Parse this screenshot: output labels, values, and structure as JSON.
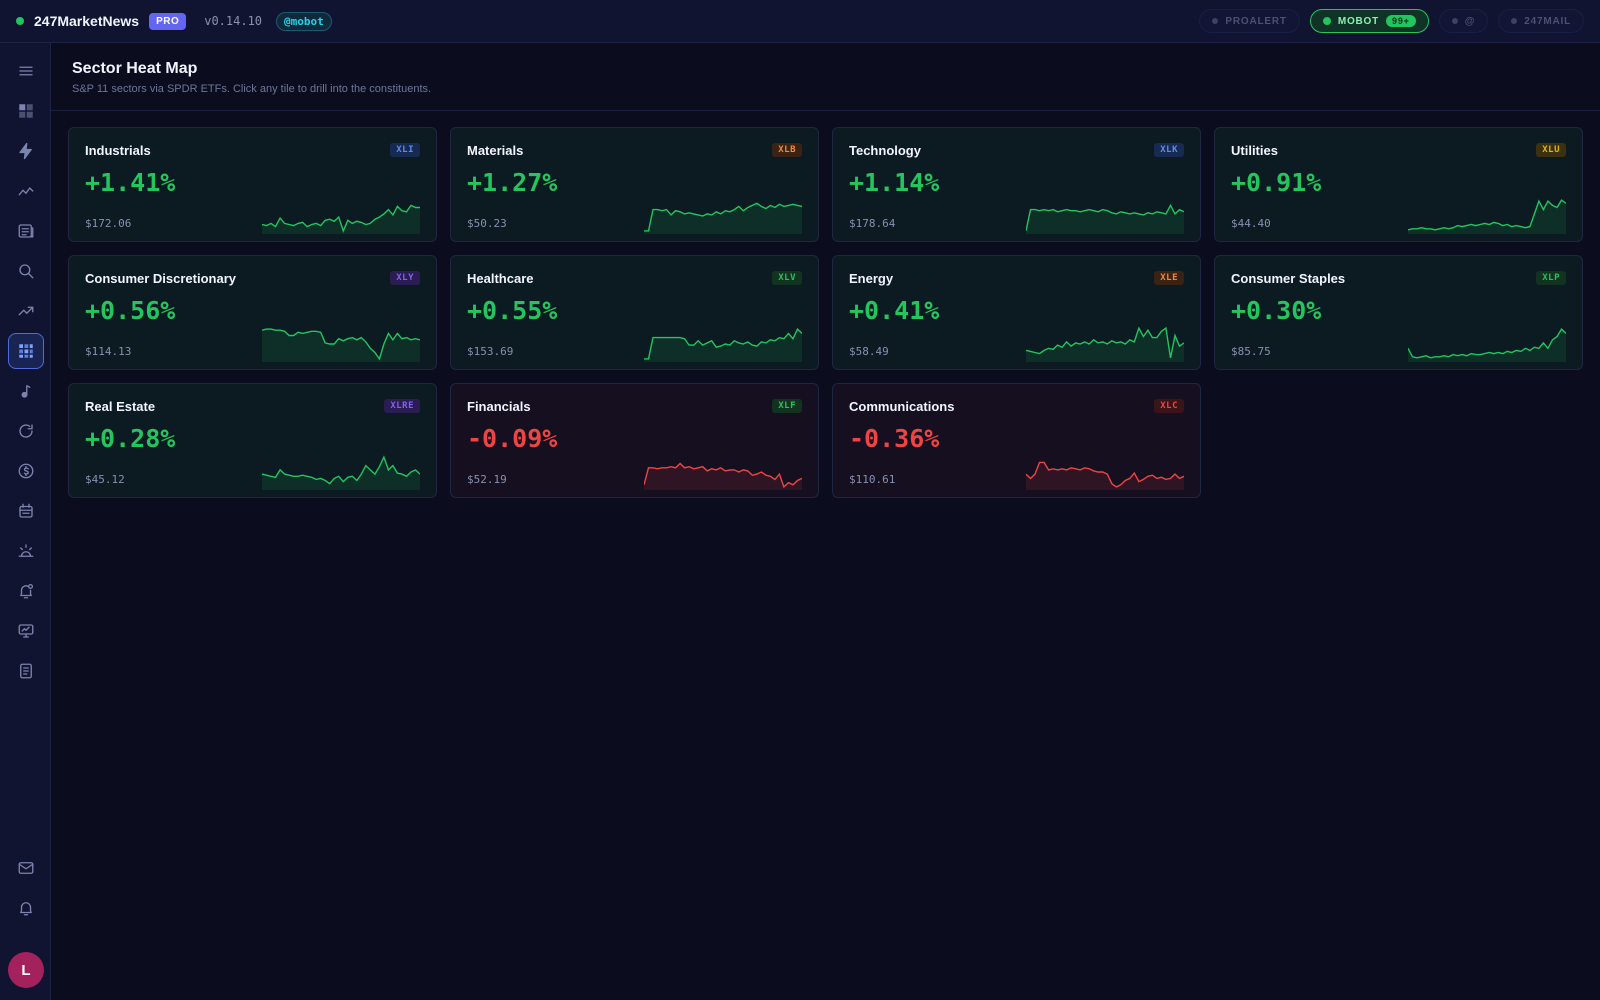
{
  "header": {
    "brand": "247MarketNews",
    "pro": "PRO",
    "version": "v0.14.10",
    "user": "@mobot",
    "pills": [
      {
        "label": "PROALERT",
        "active": false
      },
      {
        "label": "MOBOT",
        "active": true,
        "count": "99+"
      },
      {
        "label": "@",
        "active": false
      },
      {
        "label": "247MAIL",
        "active": false
      }
    ]
  },
  "page": {
    "title": "Sector Heat Map",
    "subtitle": "S&P 11 sectors via SPDR ETFs. Click any tile to drill into the constituents."
  },
  "sidebar": {
    "items": [
      "menu-icon",
      "dashboard-icon",
      "bolt-icon",
      "line-chart-icon",
      "news-icon",
      "search-icon",
      "trending-icon",
      "heatmap-icon",
      "music-note-icon",
      "refresh-icon",
      "dollar-icon",
      "calendar-icon",
      "sunrise-icon",
      "bell-plus-icon",
      "monitor-chart-icon",
      "document-icon"
    ],
    "bottom": [
      "mail-icon",
      "bell-icon"
    ],
    "avatar": "L"
  },
  "colors": {
    "up": "#22c55e",
    "down": "#ef4444"
  },
  "sectors": [
    {
      "name": "Industrials",
      "ticker": "XLI",
      "change": "+1.41%",
      "price": "$172.06",
      "tickerColor": "#5b8def",
      "tickerBg": "#172a52",
      "dir": "up",
      "spark": [
        8,
        7,
        9,
        6,
        14,
        9,
        8,
        7,
        9,
        10,
        6,
        8,
        9,
        7,
        12,
        13,
        11,
        15,
        2,
        12,
        9,
        11,
        10,
        8,
        9,
        13,
        15,
        18,
        22,
        17,
        25,
        21,
        20,
        26,
        24,
        24
      ]
    },
    {
      "name": "Materials",
      "ticker": "XLB",
      "change": "+1.27%",
      "price": "$50.23",
      "tickerColor": "#f0883e",
      "tickerBg": "#3a2312",
      "dir": "up",
      "spark": [
        2,
        2,
        22,
        22,
        21,
        22,
        17,
        21,
        20,
        18,
        19,
        18,
        17,
        16,
        18,
        17,
        20,
        18,
        21,
        20,
        22,
        25,
        21,
        24,
        26,
        28,
        25,
        23,
        26,
        24,
        27,
        25,
        26,
        27,
        26,
        25
      ]
    },
    {
      "name": "Technology",
      "ticker": "XLK",
      "change": "+1.14%",
      "price": "$178.64",
      "tickerColor": "#5b8def",
      "tickerBg": "#172a52",
      "dir": "up",
      "spark": [
        2,
        22,
        22,
        21,
        22,
        21,
        22,
        20,
        21,
        22,
        21,
        21,
        20,
        21,
        22,
        21,
        20,
        22,
        21,
        19,
        18,
        20,
        19,
        18,
        19,
        18,
        17,
        19,
        18,
        20,
        19,
        18,
        26,
        18,
        22,
        20
      ]
    },
    {
      "name": "Utilities",
      "ticker": "XLU",
      "change": "+0.91%",
      "price": "$44.40",
      "tickerColor": "#eab308",
      "tickerBg": "#3a3110",
      "dir": "up",
      "spark": [
        3,
        4,
        4,
        5,
        4,
        4,
        3,
        4,
        5,
        4,
        5,
        7,
        6,
        7,
        8,
        7,
        8,
        9,
        8,
        10,
        9,
        7,
        8,
        6,
        7,
        6,
        5,
        6,
        18,
        30,
        22,
        30,
        26,
        24,
        31,
        28
      ]
    },
    {
      "name": "Consumer Discretionary",
      "ticker": "XLY",
      "change": "+0.56%",
      "price": "$114.13",
      "tickerColor": "#8b5cf6",
      "tickerBg": "#291d52",
      "dir": "up",
      "spark": [
        29,
        30,
        30,
        29,
        29,
        28,
        24,
        24,
        27,
        26,
        27,
        28,
        28,
        27,
        17,
        16,
        16,
        21,
        19,
        21,
        22,
        20,
        22,
        18,
        12,
        8,
        2,
        16,
        26,
        20,
        26,
        21,
        22,
        20,
        21,
        20
      ]
    },
    {
      "name": "Healthcare",
      "ticker": "XLV",
      "change": "+0.55%",
      "price": "$153.69",
      "tickerColor": "#22c55e",
      "tickerBg": "#12331f",
      "dir": "up",
      "spark": [
        2,
        2,
        22,
        22,
        22,
        22,
        22,
        22,
        22,
        21,
        15,
        15,
        19,
        15,
        17,
        19,
        13,
        14,
        16,
        15,
        19,
        17,
        16,
        18,
        15,
        14,
        18,
        17,
        20,
        19,
        22,
        21,
        26,
        21,
        30,
        26
      ]
    },
    {
      "name": "Energy",
      "ticker": "XLE",
      "change": "+0.41%",
      "price": "$58.49",
      "tickerColor": "#f0883e",
      "tickerBg": "#3a2312",
      "dir": "up",
      "spark": [
        10,
        9,
        8,
        7,
        10,
        12,
        11,
        15,
        13,
        18,
        14,
        17,
        16,
        18,
        16,
        20,
        17,
        18,
        16,
        19,
        17,
        18,
        16,
        20,
        18,
        31,
        23,
        29,
        22,
        22,
        28,
        31,
        3,
        24,
        14,
        17
      ]
    },
    {
      "name": "Consumer Staples",
      "ticker": "XLP",
      "change": "+0.30%",
      "price": "$85.75",
      "tickerColor": "#22c55e",
      "tickerBg": "#12331f",
      "dir": "up",
      "spark": [
        12,
        4,
        3,
        4,
        5,
        3,
        4,
        4,
        5,
        4,
        6,
        5,
        6,
        5,
        7,
        6,
        6,
        7,
        8,
        7,
        8,
        7,
        9,
        8,
        10,
        9,
        12,
        10,
        13,
        12,
        17,
        12,
        20,
        23,
        30,
        26
      ]
    },
    {
      "name": "Real Estate",
      "ticker": "XLRE",
      "change": "+0.28%",
      "price": "$45.12",
      "tickerColor": "#8b5cf6",
      "tickerBg": "#291d52",
      "dir": "up",
      "spark": [
        14,
        13,
        12,
        11,
        18,
        14,
        13,
        12,
        12,
        13,
        12,
        11,
        9,
        10,
        8,
        5,
        10,
        12,
        7,
        11,
        12,
        8,
        14,
        22,
        18,
        14,
        21,
        30,
        18,
        22,
        15,
        14,
        12,
        16,
        18,
        14
      ]
    },
    {
      "name": "Financials",
      "ticker": "XLF",
      "change": "-0.09%",
      "price": "$52.19",
      "tickerColor": "#22c55e",
      "tickerBg": "#12331f",
      "dir": "down",
      "spark": [
        4,
        20,
        20,
        19,
        20,
        20,
        21,
        20,
        24,
        20,
        21,
        19,
        20,
        21,
        17,
        19,
        18,
        20,
        17,
        18,
        18,
        16,
        18,
        17,
        13,
        14,
        16,
        13,
        12,
        9,
        14,
        2,
        6,
        4,
        8,
        10
      ]
    },
    {
      "name": "Communications",
      "ticker": "XLC",
      "change": "-0.36%",
      "price": "$110.61",
      "tickerColor": "#ef4444",
      "tickerBg": "#3a1418",
      "dir": "down",
      "spark": [
        14,
        10,
        14,
        25,
        25,
        18,
        19,
        18,
        19,
        18,
        20,
        19,
        18,
        20,
        19,
        17,
        16,
        16,
        14,
        5,
        2,
        4,
        8,
        10,
        15,
        7,
        9,
        12,
        13,
        10,
        11,
        9,
        10,
        14,
        10,
        12
      ]
    }
  ]
}
